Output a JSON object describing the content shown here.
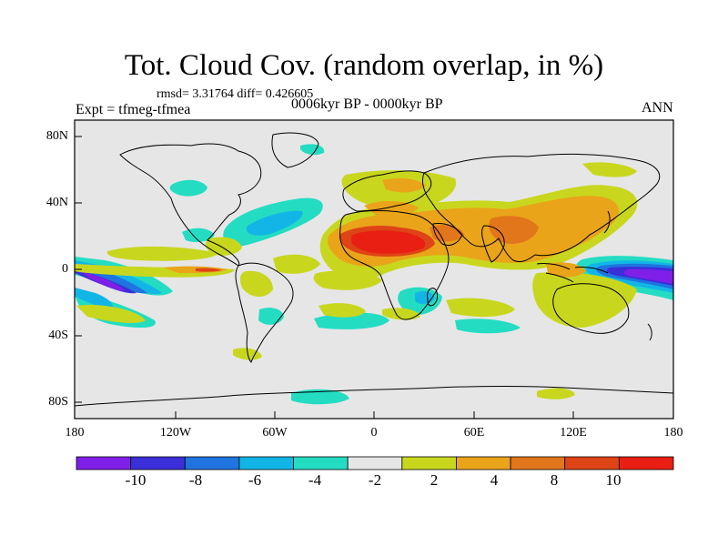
{
  "plot": {
    "title": "Tot. Cloud Cov. (random overlap, in %)",
    "stats": "rmsd= 3.31764  diff= 0.426605",
    "experiment": "Expt = tfmeg-tfmea",
    "period": "0006kyr BP - 0000kyr BP",
    "season": "ANN"
  },
  "axes": {
    "lat_ticks": [
      "80N",
      "40N",
      "0",
      "40S",
      "80S"
    ],
    "lon_ticks": [
      "180",
      "120W",
      "60W",
      "0",
      "60E",
      "120E",
      "180"
    ]
  },
  "colorbar": {
    "labels": [
      "-10",
      "-8",
      "-6",
      "-4",
      "-2",
      "2",
      "4",
      "8",
      "10"
    ],
    "colors": [
      "#7f1fe8",
      "#3a2fd9",
      "#1f74e0",
      "#12b6e6",
      "#24dcc2",
      "#e6e6e6",
      "#c8d71e",
      "#e9a41a",
      "#e2761a",
      "#de4416",
      "#e81f12"
    ]
  },
  "chart_data": {
    "type": "heatmap",
    "variable": "Total cloud cover difference",
    "units": "%",
    "contour_levels": [
      -10,
      -8,
      -6,
      -4,
      -2,
      2,
      4,
      8,
      10
    ],
    "lon_range": [
      -180,
      180
    ],
    "lat_range": [
      -90,
      90
    ],
    "regions": [
      {
        "lon_range": [
          5,
          40
        ],
        "lat_range": [
          10,
          22
        ],
        "value": ">10"
      },
      {
        "lon_range": [
          -20,
          65
        ],
        "lat_range": [
          5,
          35
        ],
        "value": "4 to 8"
      },
      {
        "lon_range": [
          60,
          140
        ],
        "lat_range": [
          5,
          35
        ],
        "value": "4 to 8"
      },
      {
        "lon_range": [
          145,
          180
        ],
        "lat_range": [
          -8,
          2
        ],
        "value": "<-10"
      },
      {
        "lon_range": [
          -180,
          -140
        ],
        "lat_range": [
          -25,
          0
        ],
        "value": "-8 to -6"
      },
      {
        "lon_range": [
          -80,
          -30
        ],
        "lat_range": [
          25,
          45
        ],
        "value": "-4 to -2"
      },
      {
        "lon_range": [
          -180,
          -130
        ],
        "lat_range": [
          0,
          10
        ],
        "value": "2 to 4"
      },
      {
        "lon_range": [
          100,
          145
        ],
        "lat_range": [
          -30,
          -10
        ],
        "value": "2 to 4"
      }
    ]
  }
}
